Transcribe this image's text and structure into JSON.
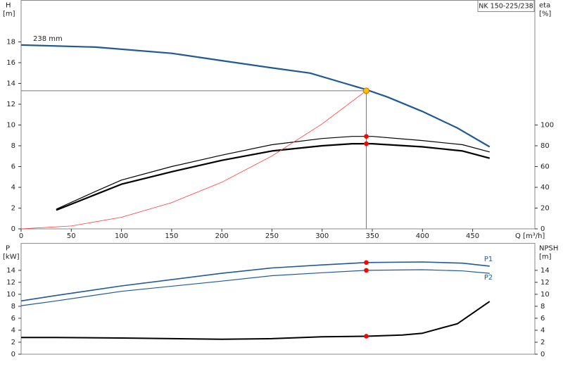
{
  "chart_data": [
    {
      "type": "line",
      "title": "NK 150-225/238",
      "xlabel": "Q [m³/h]",
      "ylabel": "H",
      "yunit": "[m]",
      "y2label": "eta",
      "y2unit": "[%]",
      "xlim": [
        0,
        512
      ],
      "xticks": [
        0,
        50,
        100,
        150,
        200,
        250,
        300,
        350,
        400,
        450
      ],
      "ylim": [
        0,
        22
      ],
      "yticks": [
        0,
        2,
        4,
        6,
        8,
        10,
        12,
        14,
        16,
        18
      ],
      "y2lim": [
        0,
        220
      ],
      "y2ticks": [
        0,
        20,
        40,
        60,
        80,
        100
      ],
      "series": [
        {
          "name": "238 mm",
          "color": "#1f5a96",
          "linewidth": 2.2,
          "x": [
            0,
            74,
            150,
            200,
            250,
            288,
            323,
            344,
            365,
            400,
            435,
            467
          ],
          "values": [
            17.7,
            17.5,
            16.9,
            16.2,
            15.5,
            15.0,
            14.0,
            13.4,
            12.7,
            11.3,
            9.7,
            7.9
          ]
        },
        {
          "color": "#000000",
          "linewidth": 1.2,
          "axis": "y2",
          "x": [
            35,
            74,
            100,
            150,
            200,
            250,
            300,
            330,
            350,
            400,
            440,
            467
          ],
          "values": [
            19,
            36,
            47,
            60,
            71,
            81,
            87,
            89,
            89,
            85,
            81,
            74
          ]
        },
        {
          "color": "#000000",
          "linewidth": 2.2,
          "axis": "y2",
          "x": [
            35,
            74,
            100,
            150,
            200,
            250,
            300,
            330,
            350,
            400,
            440,
            467
          ],
          "values": [
            18,
            33,
            43,
            55,
            66,
            75,
            80,
            82,
            82,
            79,
            75,
            68
          ]
        },
        {
          "color": "#ff3b3b",
          "linewidth": 0.8,
          "x": [
            0,
            50,
            100,
            150,
            200,
            250,
            300,
            344
          ],
          "values": [
            0,
            0.28,
            1.12,
            2.53,
            4.49,
            7.02,
            10.11,
            13.3
          ]
        }
      ],
      "duty_point": {
        "x": 344,
        "y": 13.3,
        "color": "#ffc000"
      },
      "markers": [
        {
          "x": 344,
          "y": 89,
          "axis": "y2",
          "color": "#ff0000"
        },
        {
          "x": 344,
          "y": 82,
          "axis": "y2",
          "color": "#ff0000"
        }
      ]
    },
    {
      "type": "line",
      "ylabel": "P",
      "yunit": "[kW]",
      "y2label": "NPSH",
      "y2unit": "[m]",
      "xlim": [
        0,
        512
      ],
      "ylim": [
        0,
        18.5
      ],
      "yticks": [
        0,
        2,
        4,
        6,
        8,
        10,
        12,
        14
      ],
      "y2lim": [
        0,
        18.5
      ],
      "y2ticks": [
        0,
        2,
        4,
        6,
        8,
        10,
        12,
        14
      ],
      "series": [
        {
          "name": "P1",
          "color": "#1f5a96",
          "linewidth": 1.6,
          "x": [
            0,
            35,
            100,
            200,
            250,
            300,
            344,
            400,
            440,
            467
          ],
          "values": [
            8.9,
            9.8,
            11.4,
            13.5,
            14.4,
            14.9,
            15.3,
            15.4,
            15.2,
            14.7
          ]
        },
        {
          "name": "P2",
          "color": "#1f5a96",
          "linewidth": 1.2,
          "x": [
            0,
            35,
            100,
            200,
            250,
            300,
            344,
            400,
            440,
            467
          ],
          "values": [
            8.1,
            8.9,
            10.5,
            12.2,
            13.1,
            13.6,
            14.0,
            14.1,
            13.9,
            13.5
          ]
        },
        {
          "color": "#000000",
          "linewidth": 2,
          "axis": "y2",
          "x": [
            0,
            35,
            100,
            200,
            250,
            300,
            344,
            380,
            400,
            435,
            467
          ],
          "values": [
            2.8,
            2.8,
            2.7,
            2.5,
            2.6,
            2.9,
            3.0,
            3.2,
            3.5,
            5.1,
            8.8
          ]
        }
      ],
      "markers": [
        {
          "x": 344,
          "y": 15.3,
          "color": "#ff0000"
        },
        {
          "x": 344,
          "y": 14.0,
          "color": "#ff0000"
        },
        {
          "x": 344,
          "y": 3.0,
          "axis": "y2",
          "color": "#ff0000"
        }
      ]
    }
  ]
}
